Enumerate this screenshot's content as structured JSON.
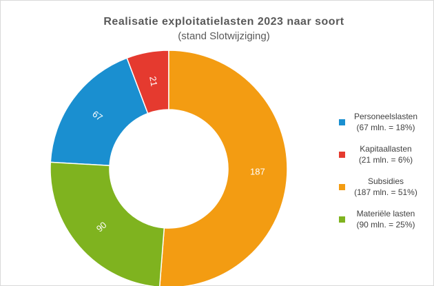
{
  "chart_data": {
    "type": "donut",
    "title": "Realisatie exploitatielasten 2023 naar soort",
    "subtitle": "(stand Slotwijziging)",
    "categories": [
      "Personeelslasten",
      "Kapitaallasten",
      "Subsidies",
      "Materiële lasten"
    ],
    "legend_details": [
      "(67 mln. = 18%)",
      "(21 mln. = 6%)",
      "(187 mln. = 51%)",
      "(90 mln. = 25%)"
    ],
    "values": [
      67,
      21,
      187,
      90
    ],
    "colors": [
      "#1a8fd0",
      "#e53a2f",
      "#f39c12",
      "#7fb31f"
    ],
    "legend": "right"
  }
}
